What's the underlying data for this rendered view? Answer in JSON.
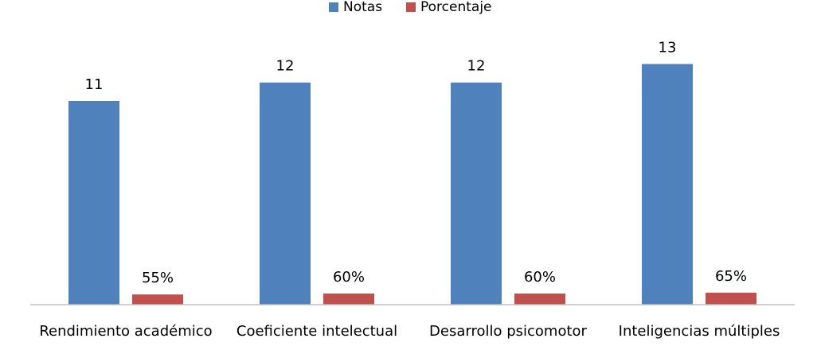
{
  "chart_data": {
    "type": "bar",
    "title": "",
    "xlabel": "",
    "ylabel": "",
    "categories": [
      "Rendimiento académico",
      "Coeficiente intelectual",
      "Desarrollo psicomotor",
      "Inteligencias múltiples"
    ],
    "series": [
      {
        "name": "Notas",
        "color": "#4F81BD",
        "values": [
          11,
          12,
          12,
          13
        ],
        "data_labels": [
          "11",
          "12",
          "12",
          "13"
        ]
      },
      {
        "name": "Porcentaje",
        "color": "#C0504D",
        "values": [
          0.55,
          0.6,
          0.6,
          0.65
        ],
        "data_labels": [
          "55%",
          "60%",
          "60%",
          "65%"
        ]
      }
    ],
    "ylim": [
      0,
      16
    ],
    "grid": false,
    "legend_position": "top-center",
    "axis_color": "#BFBFBF"
  }
}
